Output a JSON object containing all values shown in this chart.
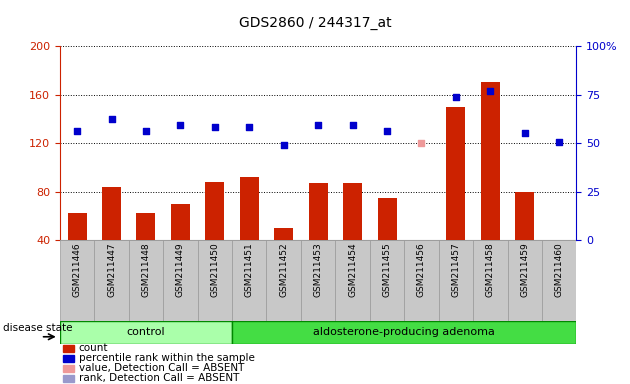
{
  "title": "GDS2860 / 244317_at",
  "samples": [
    "GSM211446",
    "GSM211447",
    "GSM211448",
    "GSM211449",
    "GSM211450",
    "GSM211451",
    "GSM211452",
    "GSM211453",
    "GSM211454",
    "GSM211455",
    "GSM211456",
    "GSM211457",
    "GSM211458",
    "GSM211459",
    "GSM211460"
  ],
  "bar_values": [
    62,
    84,
    62,
    70,
    88,
    92,
    50,
    87,
    87,
    75,
    37,
    150,
    170,
    80,
    38
  ],
  "dot_values": [
    130,
    140,
    130,
    135,
    133,
    133,
    118,
    135,
    135,
    130,
    null,
    158,
    163,
    128,
    121
  ],
  "dot_absent_val": [
    null,
    null,
    null,
    null,
    null,
    null,
    null,
    null,
    null,
    null,
    120,
    null,
    null,
    null,
    null
  ],
  "rank_absent_val": [
    null,
    null,
    null,
    null,
    null,
    null,
    null,
    null,
    null,
    null,
    null,
    null,
    null,
    null,
    null
  ],
  "groups": [
    {
      "label": "control",
      "start": 0,
      "end": 5
    },
    {
      "label": "aldosterone-producing adenoma",
      "start": 5,
      "end": 15
    }
  ],
  "ylim_left": [
    40,
    200
  ],
  "left_ticks": [
    40,
    80,
    120,
    160,
    200
  ],
  "right_ticks": [
    0,
    25,
    50,
    75,
    100
  ],
  "bar_color": "#cc2200",
  "dot_color": "#0000cc",
  "dot_absent_color": "#ee9999",
  "rank_absent_color": "#9999cc",
  "bg_xticklabel": "#c8c8c8",
  "bg_group_control": "#aaffaa",
  "bg_group_adenoma": "#44dd44",
  "group_border_color": "#008800",
  "left_tick_color": "#cc2200",
  "right_tick_color": "#0000cc",
  "legend_items": [
    {
      "label": "count",
      "color": "#cc2200"
    },
    {
      "label": "percentile rank within the sample",
      "color": "#0000cc"
    },
    {
      "label": "value, Detection Call = ABSENT",
      "color": "#ee9999"
    },
    {
      "label": "rank, Detection Call = ABSENT",
      "color": "#9999cc"
    }
  ]
}
